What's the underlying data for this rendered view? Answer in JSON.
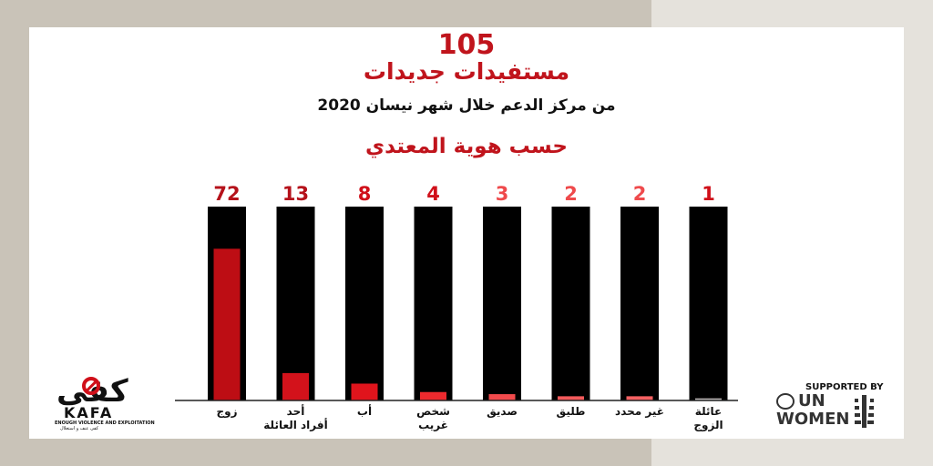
{
  "header": {
    "total": "105",
    "subtitle": "مستفيدات جديدات",
    "subtitle2": "من مركز الدعم خلال شهر نيسان 2020",
    "section": "حسب هوية المعتدي"
  },
  "chart_data": {
    "type": "bar",
    "categories": [
      "زوج",
      "أحد أفراد العائلة",
      "أب",
      "شخص غريب",
      "صديق",
      "طليق",
      "غير محدد",
      "عائلة الزوج"
    ],
    "category_lines": [
      [
        "زوج"
      ],
      [
        "أحد",
        "أفراد العائلة"
      ],
      [
        "أب"
      ],
      [
        "شخص",
        "غريب"
      ],
      [
        "صديق"
      ],
      [
        "طليق"
      ],
      [
        "غير محدد"
      ],
      [
        "عائلة",
        "الزوج"
      ]
    ],
    "values": [
      72,
      13,
      8,
      4,
      3,
      2,
      2,
      1
    ],
    "value_labels": [
      "72",
      "13",
      "8",
      "4",
      "3",
      "2",
      "2",
      "1"
    ],
    "bar_colors": [
      "#bd0d14",
      "#d3121b",
      "#e0141c",
      "#ee2a2e",
      "#f24a4c",
      "#f45a5b",
      "#f56162",
      "#bdb8b8"
    ],
    "value_label_colors": [
      "#b5121b",
      "#b5121b",
      "#d0101a",
      "#d0101a",
      "#ef4a4c",
      "#ef4a4c",
      "#ef4a4c",
      "#d0101a"
    ],
    "background_column_color": "#000000",
    "ylim": [
      0,
      92
    ],
    "grid": false,
    "legend": "none"
  },
  "logos": {
    "kafa_mark": "كفى",
    "kafa_word": "KAFA",
    "kafa_tagline": "ENOUGH VIOLENCE AND EXPLOITATION",
    "kafa_tagline_ar": "كفى عنف و استغلال",
    "supported_by": "SUPPORTED BY",
    "un": "UN",
    "women": "WOMEN"
  }
}
